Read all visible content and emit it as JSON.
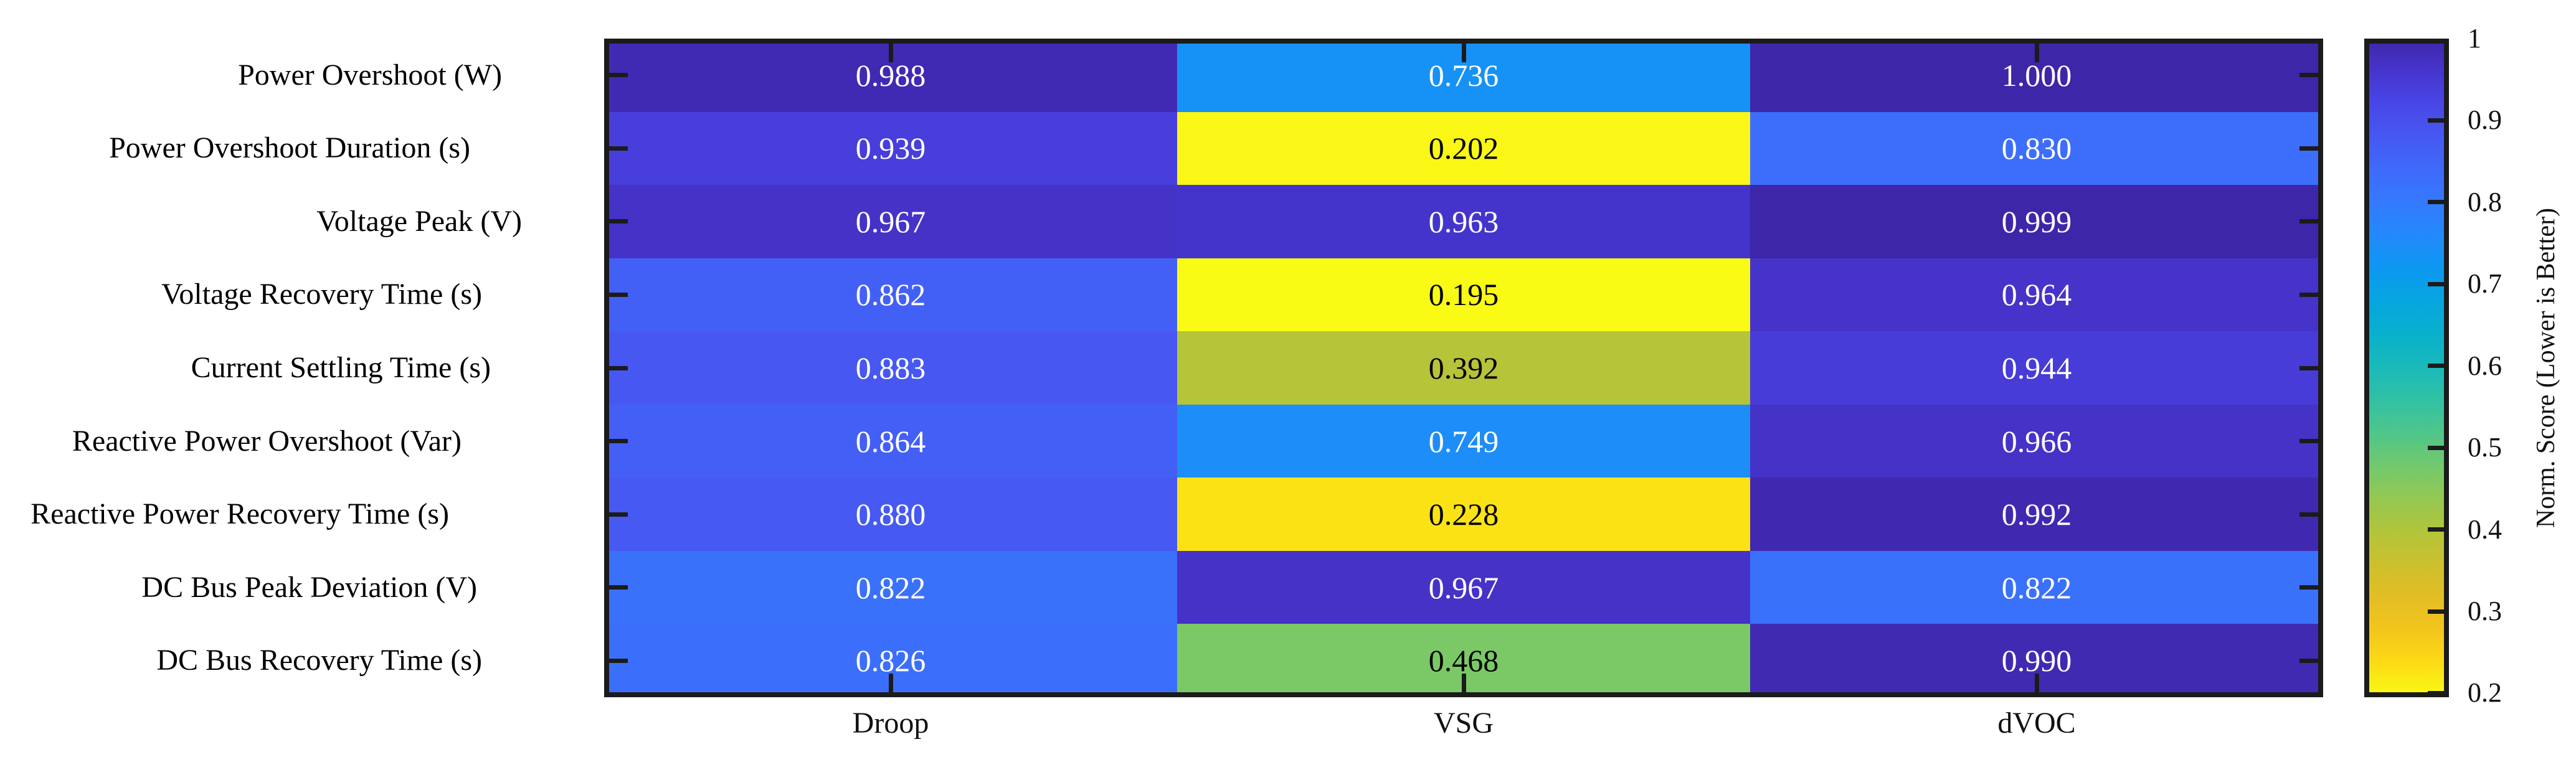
{
  "chart_data": {
    "type": "heatmap",
    "title": "",
    "rows": [
      "Power Overshoot (W)",
      "Power Overshoot Duration (s)",
      "Voltage Peak (V)",
      "Voltage Recovery Time (s)",
      "Current Settling Time (s)",
      "Reactive Power Overshoot (Var)",
      "Reactive Power Recovery Time (s)",
      "DC Bus Peak Deviation (V)",
      "DC Bus Recovery Time (s)"
    ],
    "columns": [
      "Droop",
      "VSG",
      "dVOC"
    ],
    "values": [
      [
        0.988,
        0.736,
        1.0
      ],
      [
        0.939,
        0.202,
        0.83
      ],
      [
        0.967,
        0.963,
        0.999
      ],
      [
        0.862,
        0.195,
        0.964
      ],
      [
        0.883,
        0.392,
        0.944
      ],
      [
        0.864,
        0.749,
        0.966
      ],
      [
        0.88,
        0.228,
        0.992
      ],
      [
        0.822,
        0.967,
        0.822
      ],
      [
        0.826,
        0.468,
        0.99
      ]
    ],
    "value_decimals": 3,
    "grid": false,
    "frame_color": "#1B1B1B",
    "background": "#FFFFFF",
    "cell_text_light": "#FFFFFF",
    "cell_text_dark": "#000000",
    "colorbar": {
      "label": "Norm. Score (Lower is Better)",
      "tick_labels": [
        "1",
        "0.9",
        "0.8",
        "0.7",
        "0.6",
        "0.5",
        "0.4",
        "0.3",
        "0.2"
      ],
      "tick_values": [
        1,
        0.9,
        0.8,
        0.7,
        0.6,
        0.5,
        0.4,
        0.3,
        0.2
      ],
      "min": 0.195,
      "max": 1.0,
      "colormap": "parula-reversed",
      "colormap_stops": [
        "#3E26A8",
        "#4635CE",
        "#4847E7",
        "#4659F3",
        "#3F6AFA",
        "#337AFD",
        "#228AFA",
        "#0D98F2",
        "#06A6DF",
        "#09B1CC",
        "#1ABAB9",
        "#32C1A3",
        "#50C68A",
        "#73C96C",
        "#95C851",
        "#B3C43A",
        "#CDC02C",
        "#E4BE25",
        "#F4C61C",
        "#FCDC15",
        "#F9FB15"
      ]
    }
  }
}
